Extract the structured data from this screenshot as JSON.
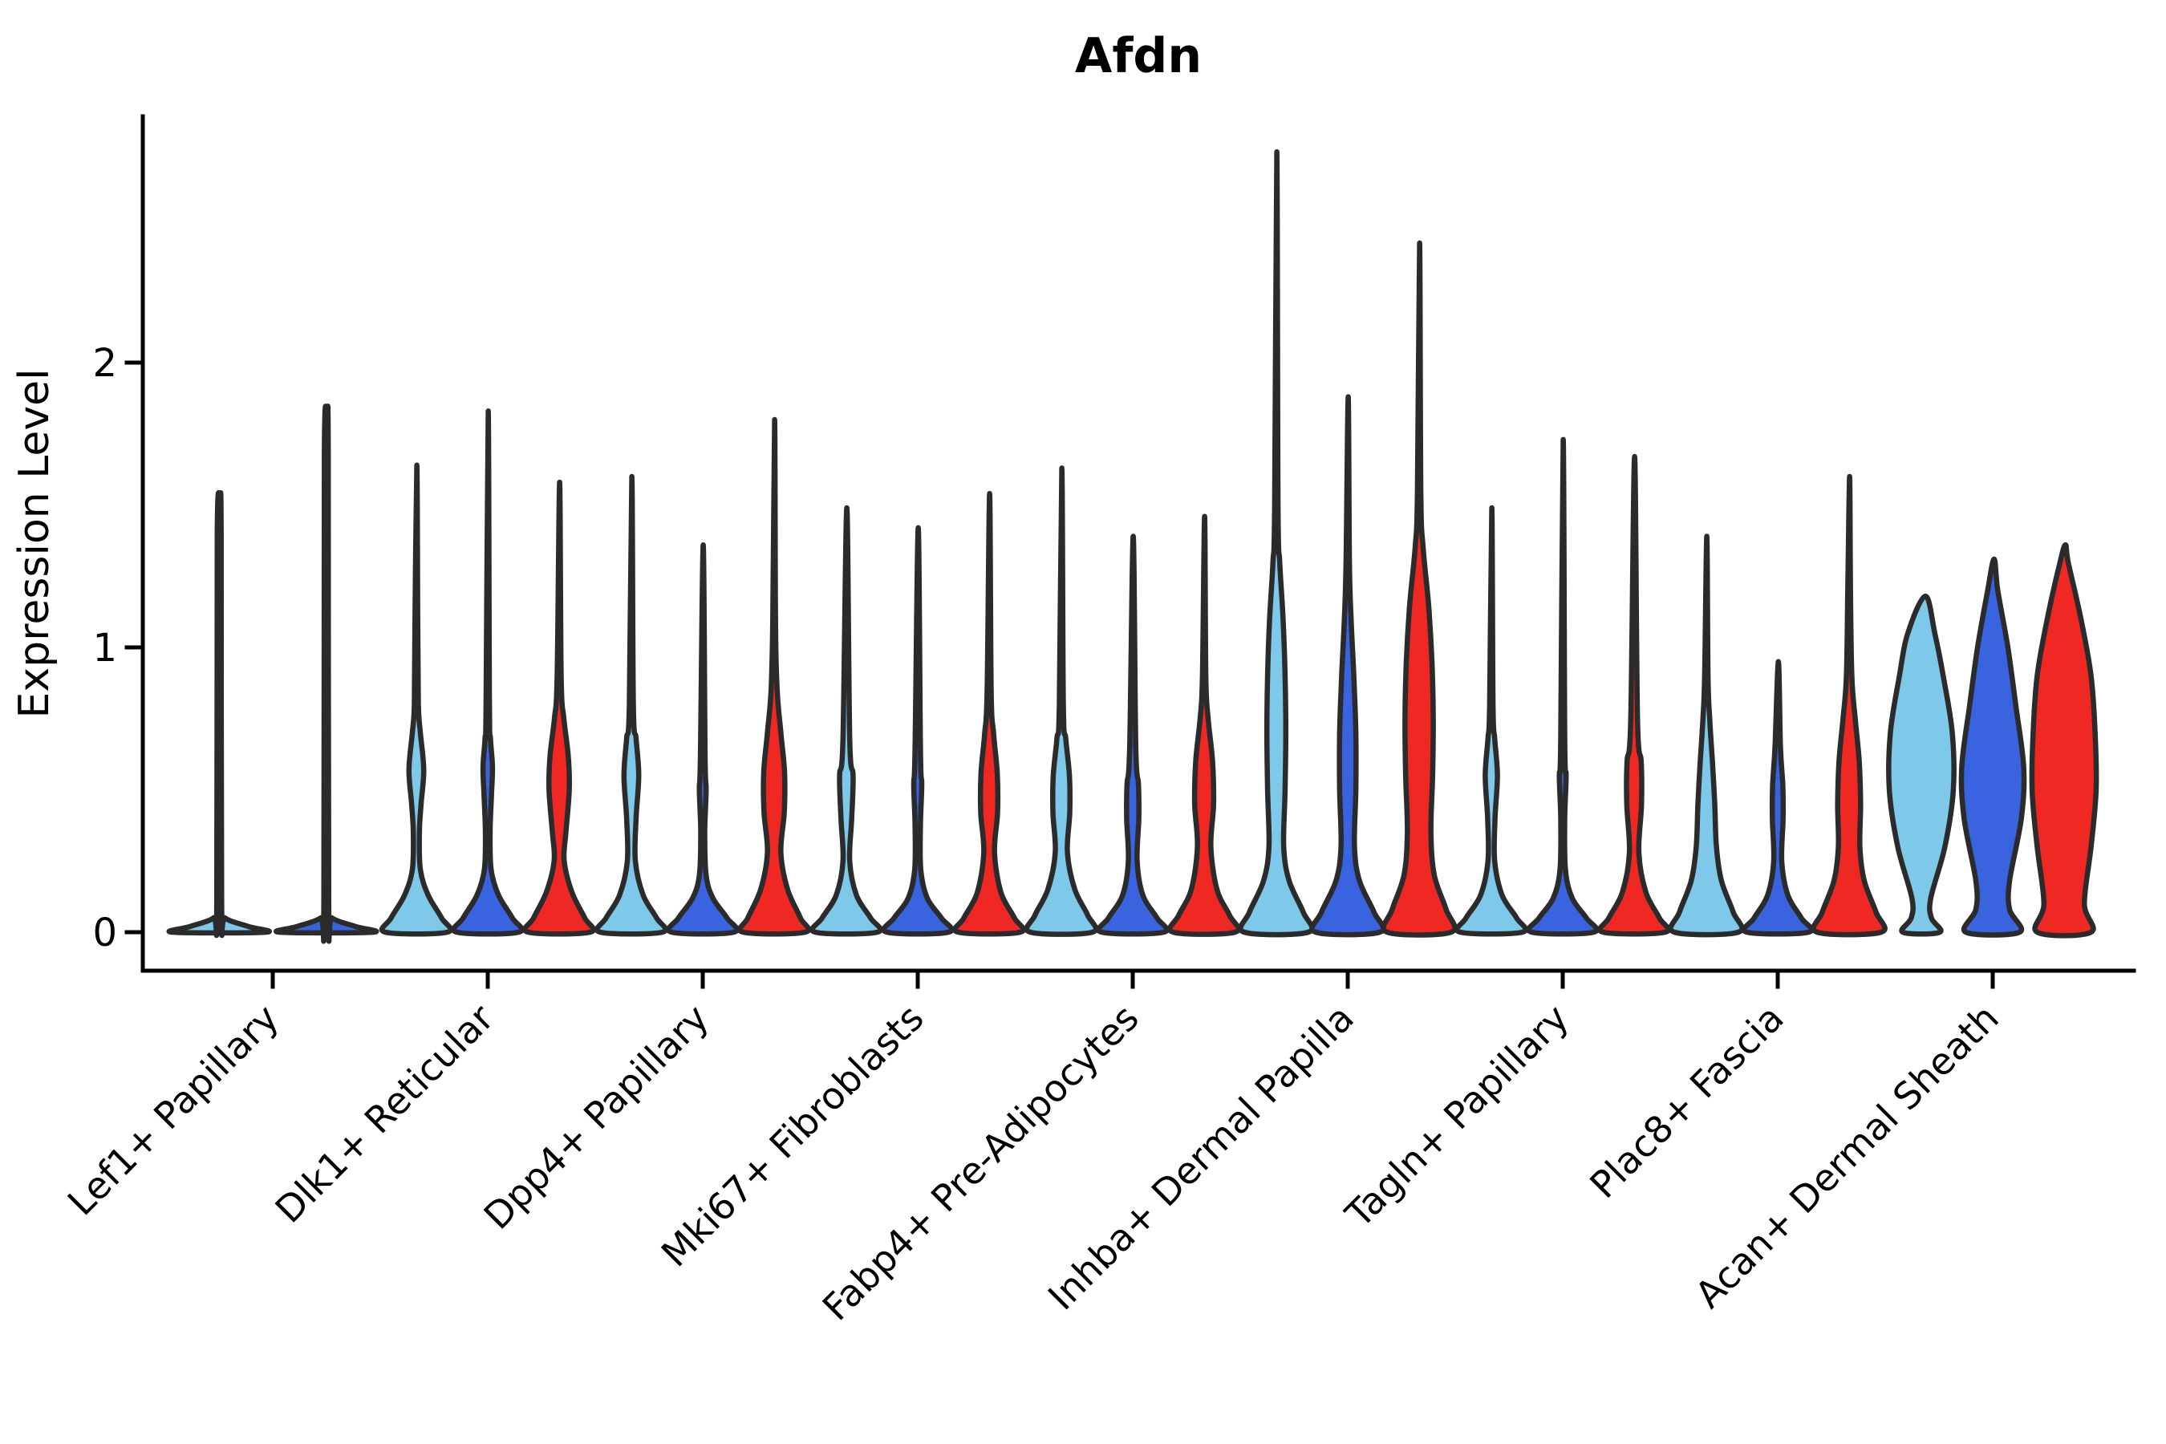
{
  "chart_data": {
    "type": "violin",
    "title": "Afdn",
    "xlabel": "",
    "ylabel": "Expression Level",
    "yticks": [
      0,
      1,
      2
    ],
    "ylim": [
      -0.13,
      2.86
    ],
    "grid": false,
    "legend": "none",
    "categories": [
      "Lef1+ Papillary",
      "Dlk1+ Reticular",
      "Dpp4+ Papillary",
      "Mki67+ Fibroblasts",
      "Fabp4+ Pre-Adipocytes",
      "Inhba+ Dermal Papilla",
      "Tagln+ Papillary",
      "Plac8+ Fascia",
      "Acan+ Dermal Sheath"
    ],
    "series": [
      {
        "name": "light_blue",
        "color": "#7EC8EA",
        "max_expression": [
          1.51,
          1.64,
          1.6,
          1.49,
          1.63,
          2.74,
          1.49,
          1.39,
          1.18
        ]
      },
      {
        "name": "royal_blue",
        "color": "#3A63E0",
        "max_expression": [
          1.8,
          1.83,
          1.36,
          1.42,
          1.39,
          1.88,
          1.73,
          0.95,
          1.31
        ]
      },
      {
        "name": "red",
        "color": "#EF2823",
        "max_expression": [
          null,
          1.58,
          1.8,
          1.54,
          1.46,
          2.42,
          1.67,
          1.6,
          1.36
        ]
      }
    ],
    "outline_color": "#2b2b2b",
    "axis_color": "#000000",
    "violins": [
      {
        "category_index": 0,
        "series": "light_blue",
        "offset": -0.75,
        "width_scale": 1.45,
        "profile": [
          [
            0,
            0.95
          ],
          [
            0.02,
            0.6
          ],
          [
            0.05,
            0.12
          ],
          [
            0.1,
            0.05
          ],
          [
            1.4,
            0.04
          ],
          [
            1.51,
            0.015
          ]
        ]
      },
      {
        "category_index": 0,
        "series": "royal_blue",
        "offset": 0.75,
        "width_scale": 1.45,
        "profile": [
          [
            0,
            0.95
          ],
          [
            0.02,
            0.6
          ],
          [
            0.05,
            0.12
          ],
          [
            0.1,
            0.05
          ],
          [
            1.68,
            0.04
          ],
          [
            1.8,
            0.015
          ]
        ]
      },
      {
        "category_index": 1,
        "series": "light_blue",
        "offset": -1,
        "width_scale": 1,
        "profile": [
          [
            0,
            0.92
          ],
          [
            0.05,
            0.75
          ],
          [
            0.13,
            0.35
          ],
          [
            0.22,
            0.12
          ],
          [
            0.35,
            0.09
          ],
          [
            0.45,
            0.14
          ],
          [
            0.57,
            0.22
          ],
          [
            0.7,
            0.12
          ],
          [
            0.8,
            0.06
          ],
          [
            1.1,
            0.04
          ],
          [
            1.64,
            0.015
          ]
        ]
      },
      {
        "category_index": 1,
        "series": "royal_blue",
        "offset": 0,
        "width_scale": 1,
        "profile": [
          [
            0,
            0.92
          ],
          [
            0.05,
            0.73
          ],
          [
            0.13,
            0.32
          ],
          [
            0.22,
            0.1
          ],
          [
            0.35,
            0.07
          ],
          [
            0.48,
            0.11
          ],
          [
            0.58,
            0.14
          ],
          [
            0.68,
            0.08
          ],
          [
            0.8,
            0.05
          ],
          [
            1.83,
            0.015
          ]
        ]
      },
      {
        "category_index": 1,
        "series": "red",
        "offset": 1,
        "width_scale": 1,
        "profile": [
          [
            0,
            0.92
          ],
          [
            0.05,
            0.76
          ],
          [
            0.14,
            0.38
          ],
          [
            0.25,
            0.15
          ],
          [
            0.35,
            0.2
          ],
          [
            0.5,
            0.3
          ],
          [
            0.62,
            0.27
          ],
          [
            0.75,
            0.14
          ],
          [
            0.9,
            0.06
          ],
          [
            1.58,
            0.015
          ]
        ]
      },
      {
        "category_index": 2,
        "series": "light_blue",
        "offset": -1,
        "width_scale": 1,
        "profile": [
          [
            0,
            0.92
          ],
          [
            0.05,
            0.75
          ],
          [
            0.13,
            0.35
          ],
          [
            0.25,
            0.12
          ],
          [
            0.4,
            0.14
          ],
          [
            0.55,
            0.22
          ],
          [
            0.68,
            0.14
          ],
          [
            0.8,
            0.06
          ],
          [
            1.6,
            0.015
          ]
        ]
      },
      {
        "category_index": 2,
        "series": "royal_blue",
        "offset": 0,
        "width_scale": 1,
        "profile": [
          [
            0,
            0.92
          ],
          [
            0.05,
            0.72
          ],
          [
            0.12,
            0.3
          ],
          [
            0.2,
            0.1
          ],
          [
            0.35,
            0.06
          ],
          [
            0.5,
            0.1
          ],
          [
            0.62,
            0.07
          ],
          [
            1.36,
            0.015
          ]
        ]
      },
      {
        "category_index": 2,
        "series": "red",
        "offset": 1,
        "width_scale": 1,
        "profile": [
          [
            0,
            0.92
          ],
          [
            0.05,
            0.78
          ],
          [
            0.15,
            0.4
          ],
          [
            0.28,
            0.2
          ],
          [
            0.42,
            0.3
          ],
          [
            0.56,
            0.31
          ],
          [
            0.7,
            0.2
          ],
          [
            0.85,
            0.09
          ],
          [
            1.1,
            0.04
          ],
          [
            1.8,
            0.015
          ]
        ]
      },
      {
        "category_index": 3,
        "series": "light_blue",
        "offset": -1,
        "width_scale": 1,
        "profile": [
          [
            0,
            0.92
          ],
          [
            0.05,
            0.72
          ],
          [
            0.13,
            0.3
          ],
          [
            0.25,
            0.1
          ],
          [
            0.4,
            0.16
          ],
          [
            0.55,
            0.2
          ],
          [
            0.68,
            0.1
          ],
          [
            1.49,
            0.015
          ]
        ]
      },
      {
        "category_index": 3,
        "series": "royal_blue",
        "offset": 0,
        "width_scale": 1,
        "profile": [
          [
            0,
            0.92
          ],
          [
            0.05,
            0.7
          ],
          [
            0.12,
            0.28
          ],
          [
            0.22,
            0.09
          ],
          [
            0.38,
            0.08
          ],
          [
            0.52,
            0.12
          ],
          [
            0.64,
            0.08
          ],
          [
            1.42,
            0.015
          ]
        ]
      },
      {
        "category_index": 3,
        "series": "red",
        "offset": 1,
        "width_scale": 1,
        "profile": [
          [
            0,
            0.92
          ],
          [
            0.05,
            0.75
          ],
          [
            0.14,
            0.35
          ],
          [
            0.28,
            0.16
          ],
          [
            0.42,
            0.25
          ],
          [
            0.56,
            0.24
          ],
          [
            0.7,
            0.13
          ],
          [
            0.85,
            0.06
          ],
          [
            1.54,
            0.015
          ]
        ]
      },
      {
        "category_index": 4,
        "series": "light_blue",
        "offset": -1,
        "width_scale": 1,
        "profile": [
          [
            0,
            0.92
          ],
          [
            0.06,
            0.78
          ],
          [
            0.15,
            0.4
          ],
          [
            0.28,
            0.18
          ],
          [
            0.42,
            0.25
          ],
          [
            0.55,
            0.24
          ],
          [
            0.68,
            0.13
          ],
          [
            0.8,
            0.06
          ],
          [
            1.63,
            0.015
          ]
        ]
      },
      {
        "category_index": 4,
        "series": "royal_blue",
        "offset": 0,
        "width_scale": 1,
        "profile": [
          [
            0,
            0.92
          ],
          [
            0.05,
            0.72
          ],
          [
            0.13,
            0.3
          ],
          [
            0.25,
            0.13
          ],
          [
            0.4,
            0.18
          ],
          [
            0.52,
            0.17
          ],
          [
            0.65,
            0.09
          ],
          [
            1.39,
            0.015
          ]
        ]
      },
      {
        "category_index": 4,
        "series": "red",
        "offset": 1,
        "width_scale": 1,
        "profile": [
          [
            0,
            0.92
          ],
          [
            0.06,
            0.75
          ],
          [
            0.15,
            0.38
          ],
          [
            0.3,
            0.2
          ],
          [
            0.45,
            0.28
          ],
          [
            0.6,
            0.25
          ],
          [
            0.75,
            0.12
          ],
          [
            0.9,
            0.05
          ],
          [
            1.46,
            0.015
          ]
        ]
      },
      {
        "category_index": 5,
        "series": "light_blue",
        "offset": -1,
        "width_scale": 1,
        "profile": [
          [
            0,
            0.95
          ],
          [
            0.07,
            0.8
          ],
          [
            0.18,
            0.38
          ],
          [
            0.3,
            0.22
          ],
          [
            0.5,
            0.26
          ],
          [
            0.7,
            0.28
          ],
          [
            0.9,
            0.26
          ],
          [
            1.1,
            0.2
          ],
          [
            1.3,
            0.1
          ],
          [
            1.5,
            0.05
          ],
          [
            2.74,
            0.015
          ]
        ]
      },
      {
        "category_index": 5,
        "series": "royal_blue",
        "offset": 0,
        "width_scale": 1,
        "profile": [
          [
            0,
            0.95
          ],
          [
            0.07,
            0.78
          ],
          [
            0.18,
            0.35
          ],
          [
            0.3,
            0.2
          ],
          [
            0.5,
            0.24
          ],
          [
            0.7,
            0.24
          ],
          [
            0.9,
            0.18
          ],
          [
            1.1,
            0.1
          ],
          [
            1.3,
            0.05
          ],
          [
            1.88,
            0.015
          ]
        ]
      },
      {
        "category_index": 5,
        "series": "red",
        "offset": 1,
        "width_scale": 1,
        "profile": [
          [
            0,
            0.95
          ],
          [
            0.08,
            0.8
          ],
          [
            0.2,
            0.45
          ],
          [
            0.35,
            0.35
          ],
          [
            0.55,
            0.4
          ],
          [
            0.75,
            0.42
          ],
          [
            0.95,
            0.38
          ],
          [
            1.15,
            0.28
          ],
          [
            1.35,
            0.12
          ],
          [
            1.55,
            0.05
          ],
          [
            2.42,
            0.015
          ]
        ]
      },
      {
        "category_index": 6,
        "series": "light_blue",
        "offset": -1,
        "width_scale": 1,
        "profile": [
          [
            0,
            0.92
          ],
          [
            0.05,
            0.75
          ],
          [
            0.13,
            0.32
          ],
          [
            0.25,
            0.1
          ],
          [
            0.4,
            0.11
          ],
          [
            0.55,
            0.18
          ],
          [
            0.68,
            0.1
          ],
          [
            0.8,
            0.05
          ],
          [
            1.49,
            0.015
          ]
        ]
      },
      {
        "category_index": 6,
        "series": "royal_blue",
        "offset": 0,
        "width_scale": 1,
        "profile": [
          [
            0,
            0.92
          ],
          [
            0.05,
            0.7
          ],
          [
            0.12,
            0.28
          ],
          [
            0.22,
            0.08
          ],
          [
            0.4,
            0.06
          ],
          [
            0.55,
            0.1
          ],
          [
            0.68,
            0.06
          ],
          [
            1.73,
            0.015
          ]
        ]
      },
      {
        "category_index": 6,
        "series": "red",
        "offset": 1,
        "width_scale": 1,
        "profile": [
          [
            0,
            0.92
          ],
          [
            0.05,
            0.75
          ],
          [
            0.14,
            0.35
          ],
          [
            0.28,
            0.14
          ],
          [
            0.45,
            0.22
          ],
          [
            0.6,
            0.21
          ],
          [
            0.75,
            0.1
          ],
          [
            1.67,
            0.015
          ]
        ]
      },
      {
        "category_index": 7,
        "series": "light_blue",
        "offset": -1,
        "width_scale": 1,
        "profile": [
          [
            0,
            0.95
          ],
          [
            0.07,
            0.8
          ],
          [
            0.18,
            0.45
          ],
          [
            0.3,
            0.3
          ],
          [
            0.45,
            0.25
          ],
          [
            0.6,
            0.18
          ],
          [
            0.75,
            0.1
          ],
          [
            0.9,
            0.05
          ],
          [
            1.39,
            0.015
          ]
        ]
      },
      {
        "category_index": 7,
        "series": "royal_blue",
        "offset": 0,
        "width_scale": 1,
        "profile": [
          [
            0,
            0.92
          ],
          [
            0.05,
            0.7
          ],
          [
            0.13,
            0.3
          ],
          [
            0.25,
            0.12
          ],
          [
            0.4,
            0.16
          ],
          [
            0.52,
            0.15
          ],
          [
            0.65,
            0.08
          ],
          [
            0.95,
            0.02
          ]
        ]
      },
      {
        "category_index": 7,
        "series": "red",
        "offset": 1,
        "width_scale": 1,
        "profile": [
          [
            0,
            0.95
          ],
          [
            0.07,
            0.8
          ],
          [
            0.18,
            0.45
          ],
          [
            0.3,
            0.32
          ],
          [
            0.45,
            0.34
          ],
          [
            0.6,
            0.3
          ],
          [
            0.75,
            0.18
          ],
          [
            0.9,
            0.08
          ],
          [
            1.2,
            0.04
          ],
          [
            1.6,
            0.015
          ]
        ]
      },
      {
        "category_index": 8,
        "series": "light_blue",
        "offset": -1,
        "width_scale": 1,
        "profile": [
          [
            0,
            0.55
          ],
          [
            0.05,
            0.3
          ],
          [
            0.12,
            0.28
          ],
          [
            0.3,
            0.7
          ],
          [
            0.5,
            0.95
          ],
          [
            0.7,
            0.92
          ],
          [
            0.9,
            0.65
          ],
          [
            1.05,
            0.4
          ],
          [
            1.18,
            0.12
          ]
        ]
      },
      {
        "category_index": 8,
        "series": "royal_blue",
        "offset": 0,
        "width_scale": 1,
        "profile": [
          [
            0,
            0.8
          ],
          [
            0.08,
            0.5
          ],
          [
            0.18,
            0.5
          ],
          [
            0.4,
            0.85
          ],
          [
            0.58,
            0.92
          ],
          [
            0.8,
            0.68
          ],
          [
            1.0,
            0.45
          ],
          [
            1.2,
            0.15
          ],
          [
            1.31,
            0.04
          ]
        ]
      },
      {
        "category_index": 8,
        "series": "red",
        "offset": 1,
        "width_scale": 1,
        "profile": [
          [
            0,
            0.8
          ],
          [
            0.1,
            0.6
          ],
          [
            0.3,
            0.8
          ],
          [
            0.5,
            0.95
          ],
          [
            0.7,
            0.92
          ],
          [
            0.9,
            0.8
          ],
          [
            1.1,
            0.5
          ],
          [
            1.3,
            0.12
          ],
          [
            1.36,
            0.04
          ]
        ]
      }
    ]
  }
}
